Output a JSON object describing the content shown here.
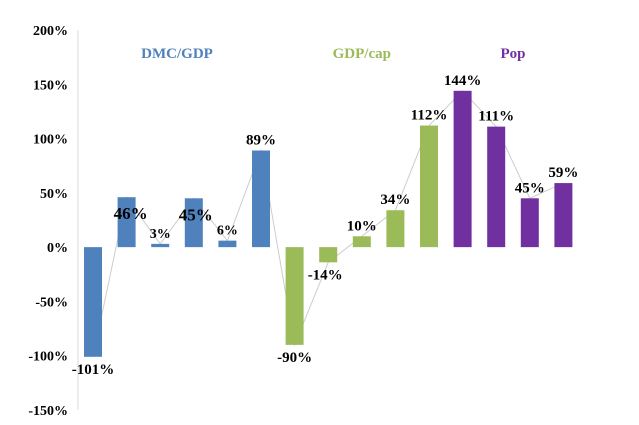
{
  "chart_data": {
    "type": "bar",
    "title": "",
    "xlabel": "",
    "ylabel": "",
    "ylim": [
      -150,
      200
    ],
    "yticks": [
      200,
      150,
      100,
      50,
      0,
      -50,
      -100,
      -150
    ],
    "tick_suffix": "%",
    "grid": false,
    "connector_line": true,
    "groups": [
      {
        "name": "DMC/GDP",
        "color": "#4F81BD",
        "values": [
          -101,
          46,
          3,
          45,
          6,
          89
        ]
      },
      {
        "name": "GDP/cap",
        "color": "#9BBB59",
        "values": [
          -90,
          -14,
          10,
          34,
          112
        ]
      },
      {
        "name": "Pop",
        "color": "#7030A0",
        "values": [
          144,
          111,
          45,
          59
        ]
      }
    ],
    "data_labels": [
      "-101%",
      "46%",
      "3%",
      "45%",
      "6%",
      "89%",
      "-90%",
      "-14%",
      "10%",
      "34%",
      "112%",
      "144%",
      "111%",
      "45%",
      "59%"
    ]
  }
}
